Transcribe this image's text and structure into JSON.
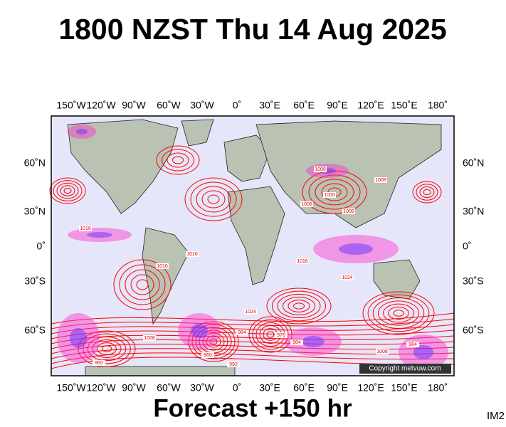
{
  "header": {
    "title": "1800 NZST Thu 14 Aug 2025"
  },
  "map": {
    "lon_labels": [
      "150˚W",
      "120˚W",
      "90˚W",
      "60˚W",
      "30˚W",
      "0˚",
      "30˚E",
      "60˚E",
      "90˚E",
      "120˚E",
      "150˚E",
      "180˚"
    ],
    "lat_labels": [
      "60˚N",
      "30˚N",
      "0˚",
      "30˚S",
      "60˚S"
    ],
    "isobar_labels": [
      1016,
      1016,
      1016,
      1024,
      1008,
      1000,
      1008,
      1016,
      1024,
      984,
      976,
      984,
      960,
      992,
      1008,
      1008,
      984,
      960,
      1008,
      1008
    ],
    "copyright": "Copyright metvuw.com"
  },
  "footer": {
    "forecast": "Forecast +150 hr",
    "image_id": "IM2"
  }
}
